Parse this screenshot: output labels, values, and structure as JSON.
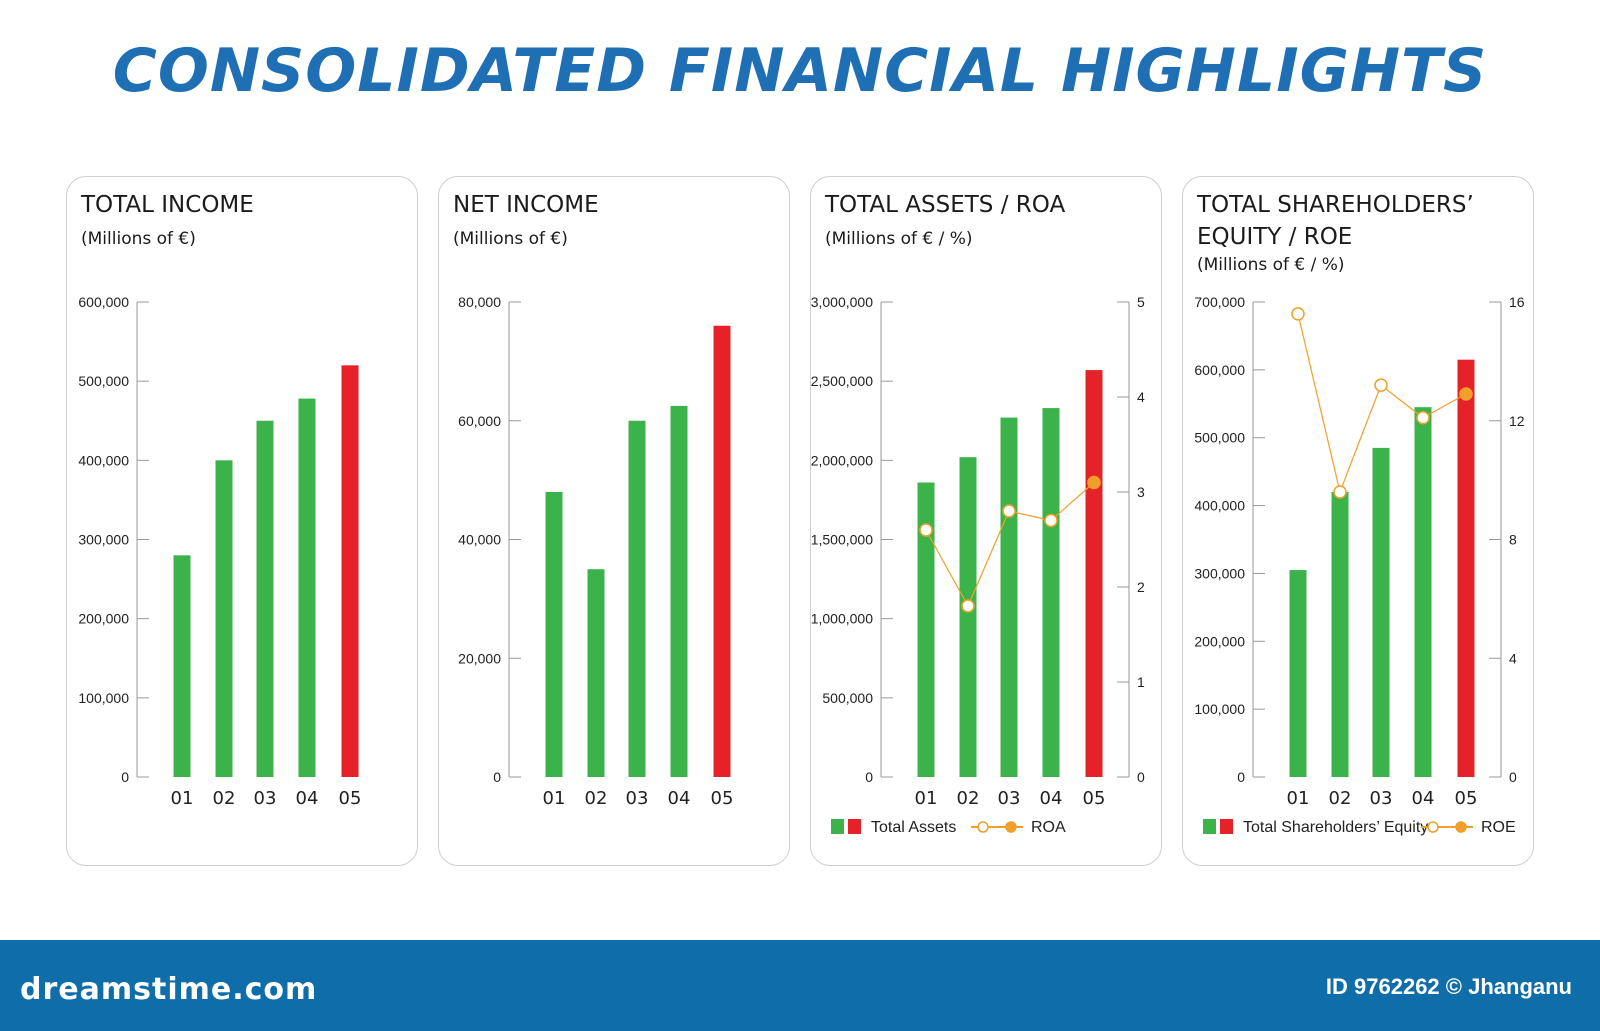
{
  "page_title": "CONSOLIDATED FINANCIAL HIGHLIGHTS",
  "colors": {
    "title": "#1f6fb5",
    "green_bar": "#3bb34a",
    "red_bar": "#e52228",
    "line": "#f0a02a",
    "footer": "#0f6da9"
  },
  "footer": {
    "brand": "dreamstime.com",
    "image_id": "ID 9762262 © Jhanganu"
  },
  "panels": [
    {
      "title": "TOTAL INCOME",
      "subtitle": "(Millions of €)"
    },
    {
      "title": "NET INCOME",
      "subtitle": "(Millions of €)"
    },
    {
      "title": "TOTAL ASSETS / ROA",
      "subtitle": "(Millions of € / %)"
    },
    {
      "title": "TOTAL SHAREHOLDERS’ EQUITY / ROE",
      "subtitle": "(Millions of € / %)"
    }
  ],
  "chart_data": [
    {
      "type": "bar",
      "title": "TOTAL INCOME",
      "ylabel": "(Millions of €)",
      "categories": [
        "01",
        "02",
        "03",
        "04",
        "05"
      ],
      "values": [
        280000,
        400000,
        450000,
        478000,
        520000
      ],
      "ylim": [
        0,
        600000
      ],
      "yticks": [
        "0",
        "100,000",
        "200,000",
        "300,000",
        "400,000",
        "500,000",
        "600,000"
      ],
      "highlight_last": true
    },
    {
      "type": "bar",
      "title": "NET INCOME",
      "ylabel": "(Millions of €)",
      "categories": [
        "01",
        "02",
        "03",
        "04",
        "05"
      ],
      "values": [
        48000,
        35000,
        60000,
        62500,
        76000
      ],
      "ylim": [
        0,
        80000
      ],
      "yticks": [
        "0",
        "20,000",
        "40,000",
        "60,000",
        "80,000"
      ],
      "highlight_last": true
    },
    {
      "type": "bar",
      "title": "TOTAL ASSETS / ROA",
      "ylabel": "(Millions of € / %)",
      "categories": [
        "01",
        "02",
        "03",
        "04",
        "05"
      ],
      "values": [
        1860000,
        2020000,
        2270000,
        2330000,
        2570000
      ],
      "ylim": [
        0,
        3000000
      ],
      "yticks": [
        "0",
        "500,000",
        "1,000,000",
        "1,500,000",
        "2,000,000",
        "2,500,000",
        "3,000,000"
      ],
      "line_series": {
        "name": "ROA",
        "values": [
          2.6,
          1.8,
          2.8,
          2.7,
          3.1
        ]
      },
      "y2lim": [
        0,
        5
      ],
      "y2ticks": [
        "0",
        "1",
        "2",
        "3",
        "4",
        "5"
      ],
      "legend": {
        "bars": "Total Assets",
        "line": "ROA"
      },
      "highlight_last": true
    },
    {
      "type": "bar",
      "title": "TOTAL SHAREHOLDERS’ EQUITY / ROE",
      "ylabel": "(Millions of € / %)",
      "categories": [
        "01",
        "02",
        "03",
        "04",
        "05"
      ],
      "values": [
        305000,
        420000,
        485000,
        545000,
        615000
      ],
      "ylim": [
        0,
        700000
      ],
      "yticks": [
        "0",
        "100,000",
        "200,000",
        "300,000",
        "400,000",
        "500,000",
        "600,000",
        "700,000"
      ],
      "line_series": {
        "name": "ROE",
        "values": [
          15.6,
          9.6,
          13.2,
          12.1,
          12.9
        ]
      },
      "y2lim": [
        0,
        16
      ],
      "y2ticks": [
        "0",
        "4",
        "8",
        "12",
        "16"
      ],
      "legend": {
        "bars": "Total Shareholders’ Equity",
        "line": "ROE"
      },
      "highlight_last": true
    }
  ]
}
